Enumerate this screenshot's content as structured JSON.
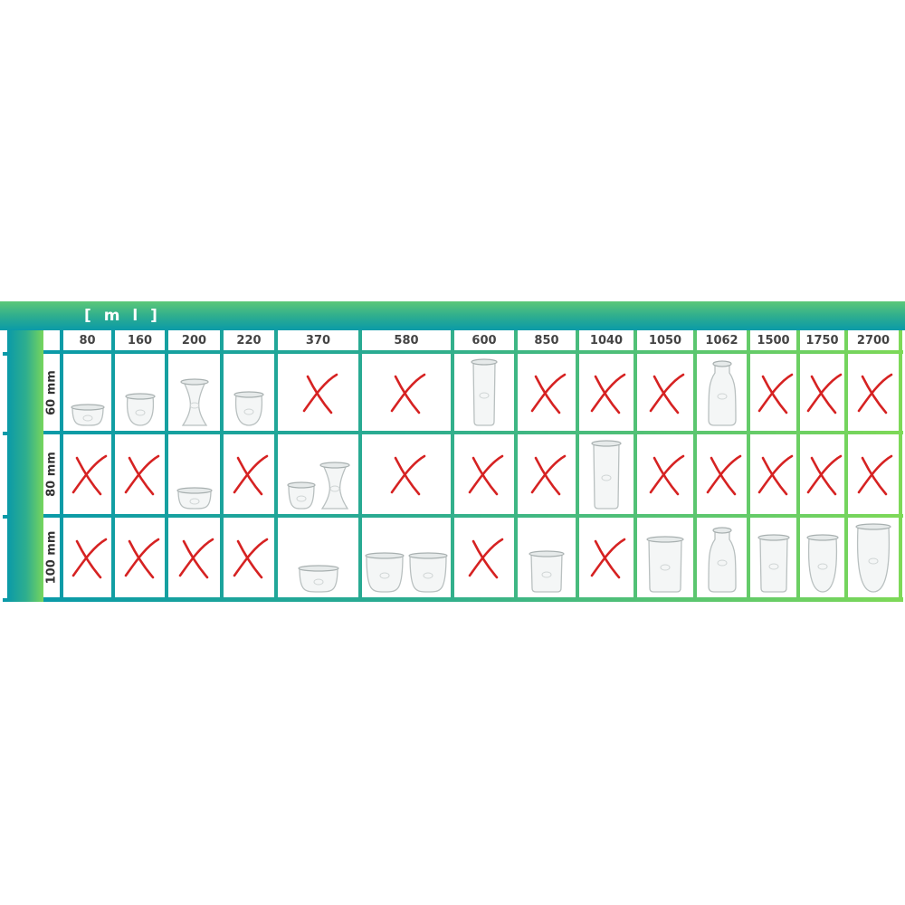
{
  "unit_label": "[ m l ]",
  "colors": {
    "grid_start": "#0a9aa8",
    "grid_end": "#7ed957",
    "cross": "#d62222",
    "header_text": "#444444"
  },
  "columns": [
    "80",
    "160",
    "200",
    "220",
    "370",
    "580",
    "600",
    "850",
    "1040",
    "1050",
    "1062",
    "1500",
    "1750",
    "2700"
  ],
  "rows": [
    {
      "label": "60 mm",
      "cells": [
        {
          "mark": "jar",
          "count": 1
        },
        {
          "mark": "jar",
          "count": 1
        },
        {
          "mark": "jar",
          "count": 1
        },
        {
          "mark": "jar",
          "count": 1
        },
        {
          "mark": "cross-icon"
        },
        {
          "mark": "cross-icon"
        },
        {
          "mark": "jar",
          "count": 1
        },
        {
          "mark": "cross-icon"
        },
        {
          "mark": "cross-icon"
        },
        {
          "mark": "cross-icon"
        },
        {
          "mark": "jar",
          "count": 1
        },
        {
          "mark": "cross-icon"
        },
        {
          "mark": "cross-icon"
        },
        {
          "mark": "cross-icon"
        }
      ]
    },
    {
      "label": "80 mm",
      "cells": [
        {
          "mark": "cross-icon"
        },
        {
          "mark": "cross-icon"
        },
        {
          "mark": "jar",
          "count": 1
        },
        {
          "mark": "cross-icon"
        },
        {
          "mark": "jar",
          "count": 2
        },
        {
          "mark": "cross-icon"
        },
        {
          "mark": "cross-icon"
        },
        {
          "mark": "cross-icon"
        },
        {
          "mark": "jar",
          "count": 1
        },
        {
          "mark": "cross-icon"
        },
        {
          "mark": "cross-icon"
        },
        {
          "mark": "cross-icon"
        },
        {
          "mark": "cross-icon"
        },
        {
          "mark": "cross-icon"
        }
      ]
    },
    {
      "label": "100 mm",
      "cells": [
        {
          "mark": "cross-icon"
        },
        {
          "mark": "cross-icon"
        },
        {
          "mark": "cross-icon"
        },
        {
          "mark": "cross-icon"
        },
        {
          "mark": "jar",
          "count": 1
        },
        {
          "mark": "jar",
          "count": 2
        },
        {
          "mark": "cross-icon"
        },
        {
          "mark": "jar",
          "count": 1
        },
        {
          "mark": "cross-icon"
        },
        {
          "mark": "jar",
          "count": 1
        },
        {
          "mark": "jar",
          "count": 1
        },
        {
          "mark": "jar",
          "count": 1
        },
        {
          "mark": "jar",
          "count": 1
        },
        {
          "mark": "jar",
          "count": 1
        }
      ]
    }
  ]
}
